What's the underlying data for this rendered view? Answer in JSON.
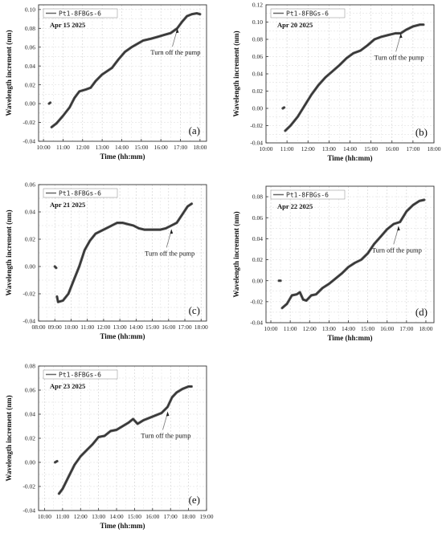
{
  "chart_data": [
    {
      "type": "line",
      "panel_label": "(a)",
      "date_label": "Apr 15 2025",
      "annotation": "Turn off the pump",
      "xlabel": "Time (hh:mm)",
      "ylabel": "Wavelength  increment (nm)",
      "x_ticks": [
        "10:00",
        "11:00",
        "12:00",
        "13:00",
        "14:00",
        "15:00",
        "16:00",
        "17:00",
        "18:00"
      ],
      "xlim": [
        "09:45",
        "18:20"
      ],
      "ylim": [
        -0.04,
        0.105
      ],
      "y_ticks": [
        -0.04,
        -0.02,
        0.0,
        0.02,
        0.04,
        0.06,
        0.08,
        0.1
      ],
      "grid": true,
      "legend": "top-left",
      "arrow_to": [
        "16:50",
        0.081
      ],
      "series": [
        {
          "name": "Pt1-8FBGs-6",
          "segments": [
            [
              [
                "10:17",
                0.0
              ],
              [
                "10:21",
                0.001
              ]
            ],
            [
              [
                "10:25",
                -0.025
              ],
              [
                "10:40",
                -0.021
              ],
              [
                "11:00",
                -0.013
              ],
              [
                "11:20",
                -0.004
              ],
              [
                "11:35",
                0.006
              ],
              [
                "11:50",
                0.013
              ],
              [
                "12:10",
                0.015
              ],
              [
                "12:25",
                0.017
              ],
              [
                "12:40",
                0.024
              ],
              [
                "13:00",
                0.031
              ],
              [
                "13:30",
                0.038
              ],
              [
                "13:50",
                0.047
              ],
              [
                "14:10",
                0.055
              ],
              [
                "14:30",
                0.06
              ],
              [
                "14:50",
                0.064
              ],
              [
                "15:05",
                0.067
              ],
              [
                "15:30",
                0.069
              ],
              [
                "15:50",
                0.071
              ],
              [
                "16:10",
                0.073
              ],
              [
                "16:30",
                0.075
              ],
              [
                "16:50",
                0.08
              ],
              [
                "17:05",
                0.087
              ],
              [
                "17:20",
                0.093
              ],
              [
                "17:35",
                0.095
              ],
              [
                "17:50",
                0.096
              ],
              [
                "18:00",
                0.095
              ]
            ]
          ]
        }
      ]
    },
    {
      "type": "line",
      "panel_label": "(b)",
      "date_label": "Apr 20 2025",
      "annotation": "Turn off the pump",
      "xlabel": "Time (hh:mm)",
      "ylabel": "Wavelength  increment (nm)",
      "x_ticks": [
        "10:00",
        "11:00",
        "12:00",
        "13:00",
        "14:00",
        "15:00",
        "16:00",
        "17:00",
        "18:00"
      ],
      "xlim": [
        "10:00",
        "18:00"
      ],
      "ylim": [
        -0.04,
        0.12
      ],
      "y_ticks": [
        -0.04,
        -0.02,
        0.0,
        0.02,
        0.04,
        0.06,
        0.08,
        0.1,
        0.12
      ],
      "grid": true,
      "legend": "top-left",
      "arrow_to": [
        "16:25",
        0.088
      ],
      "series": [
        {
          "name": "Pt1-8FBGs-6",
          "segments": [
            [
              [
                "10:48",
                0.0
              ],
              [
                "10:52",
                0.001
              ]
            ],
            [
              [
                "10:55",
                -0.026
              ],
              [
                "11:10",
                -0.02
              ],
              [
                "11:30",
                -0.01
              ],
              [
                "11:50",
                0.003
              ],
              [
                "12:10",
                0.016
              ],
              [
                "12:30",
                0.027
              ],
              [
                "12:50",
                0.036
              ],
              [
                "13:10",
                0.043
              ],
              [
                "13:30",
                0.05
              ],
              [
                "13:50",
                0.058
              ],
              [
                "14:10",
                0.064
              ],
              [
                "14:30",
                0.067
              ],
              [
                "14:50",
                0.073
              ],
              [
                "15:10",
                0.08
              ],
              [
                "15:30",
                0.083
              ],
              [
                "15:50",
                0.085
              ],
              [
                "16:10",
                0.087
              ],
              [
                "16:25",
                0.087
              ],
              [
                "16:40",
                0.091
              ],
              [
                "17:00",
                0.095
              ],
              [
                "17:20",
                0.097
              ],
              [
                "17:30",
                0.097
              ]
            ]
          ]
        }
      ]
    },
    {
      "type": "line",
      "panel_label": "(c)",
      "date_label": "Apr 21 2025",
      "annotation": "Turn off the pump",
      "xlabel": "Time (hh:mm)",
      "ylabel": "Wavelength  increment (nm)",
      "x_ticks": [
        "08:00",
        "09:00",
        "10:00",
        "11:00",
        "12:00",
        "13:00",
        "14:00",
        "15:00",
        "16:00",
        "17:00",
        "18:00"
      ],
      "xlim": [
        "08:00",
        "18:20"
      ],
      "ylim": [
        -0.04,
        0.06
      ],
      "y_ticks": [
        -0.04,
        -0.02,
        0.0,
        0.02,
        0.04,
        0.06
      ],
      "grid": true,
      "legend": "top-left",
      "arrow_to": [
        "16:10",
        0.028
      ],
      "series": [
        {
          "name": "Pt1-8FBGs-6",
          "segments": [
            [
              [
                "09:00",
                0.0
              ],
              [
                "09:05",
                -0.001
              ]
            ],
            [
              [
                "09:08",
                -0.022
              ],
              [
                "09:12",
                -0.026
              ],
              [
                "09:30",
                -0.025
              ],
              [
                "09:50",
                -0.02
              ],
              [
                "10:10",
                -0.01
              ],
              [
                "10:30",
                0.0
              ],
              [
                "10:50",
                0.012
              ],
              [
                "11:10",
                0.019
              ],
              [
                "11:30",
                0.024
              ],
              [
                "11:50",
                0.026
              ],
              [
                "12:10",
                0.028
              ],
              [
                "12:30",
                0.03
              ],
              [
                "12:50",
                0.032
              ],
              [
                "13:10",
                0.032
              ],
              [
                "13:30",
                0.031
              ],
              [
                "13:50",
                0.03
              ],
              [
                "14:10",
                0.028
              ],
              [
                "14:30",
                0.027
              ],
              [
                "15:00",
                0.027
              ],
              [
                "15:30",
                0.027
              ],
              [
                "15:50",
                0.028
              ],
              [
                "16:10",
                0.03
              ],
              [
                "16:30",
                0.032
              ],
              [
                "16:50",
                0.038
              ],
              [
                "17:10",
                0.044
              ],
              [
                "17:25",
                0.046
              ]
            ]
          ]
        }
      ]
    },
    {
      "type": "line",
      "panel_label": "(d)",
      "date_label": "Apr 22 2025",
      "annotation": "Turn off the pump",
      "xlabel": "Time (hh:mm)",
      "ylabel": "Wavelength  increment (nm)",
      "x_ticks": [
        "10:00",
        "11:00",
        "12:00",
        "13:00",
        "14:00",
        "15:00",
        "16:00",
        "17:00",
        "18:00"
      ],
      "xlim": [
        "09:45",
        "18:25"
      ],
      "ylim": [
        -0.04,
        0.09
      ],
      "y_ticks": [
        -0.04,
        -0.02,
        0.0,
        0.02,
        0.04,
        0.06,
        0.08
      ],
      "grid": true,
      "legend": "top-left",
      "arrow_to": [
        "16:35",
        0.053
      ],
      "series": [
        {
          "name": "Pt1-8FBGs-6",
          "segments": [
            [
              [
                "10:25",
                0.0
              ],
              [
                "10:30",
                0.0
              ]
            ],
            [
              [
                "10:35",
                -0.026
              ],
              [
                "10:50",
                -0.022
              ],
              [
                "11:05",
                -0.014
              ],
              [
                "11:20",
                -0.013
              ],
              [
                "11:30",
                -0.011
              ],
              [
                "11:40",
                -0.018
              ],
              [
                "11:50",
                -0.019
              ],
              [
                "12:05",
                -0.014
              ],
              [
                "12:20",
                -0.013
              ],
              [
                "12:40",
                -0.007
              ],
              [
                "13:00",
                -0.003
              ],
              [
                "13:20",
                0.002
              ],
              [
                "13:40",
                0.007
              ],
              [
                "14:00",
                0.013
              ],
              [
                "14:20",
                0.017
              ],
              [
                "14:40",
                0.02
              ],
              [
                "15:00",
                0.026
              ],
              [
                "15:20",
                0.035
              ],
              [
                "15:40",
                0.042
              ],
              [
                "16:00",
                0.049
              ],
              [
                "16:20",
                0.054
              ],
              [
                "16:40",
                0.056
              ],
              [
                "17:00",
                0.066
              ],
              [
                "17:20",
                0.072
              ],
              [
                "17:40",
                0.076
              ],
              [
                "17:55",
                0.077
              ]
            ]
          ]
        }
      ]
    },
    {
      "type": "line",
      "panel_label": "(e)",
      "date_label": "Apr 23 2025",
      "annotation": "Turn off the pump",
      "xlabel": "Time (hh:mm)",
      "ylabel": "Wavelength  increment (nm)",
      "x_ticks": [
        "10:00",
        "11:00",
        "12:00",
        "13:00",
        "14:00",
        "15:00",
        "16:00",
        "17:00",
        "18:00",
        "19:00"
      ],
      "xlim": [
        "09:40",
        "19:00"
      ],
      "ylim": [
        -0.04,
        0.08
      ],
      "y_ticks": [
        -0.04,
        -0.02,
        0.0,
        0.02,
        0.04,
        0.06,
        0.08
      ],
      "grid": true,
      "legend": "top-left",
      "arrow_to": [
        "16:50",
        0.043
      ],
      "series": [
        {
          "name": "Pt1-8FBGs-6",
          "segments": [
            [
              [
                "10:35",
                0.0
              ],
              [
                "10:42",
                0.001
              ]
            ],
            [
              [
                "10:48",
                -0.026
              ],
              [
                "11:00",
                -0.022
              ],
              [
                "11:20",
                -0.012
              ],
              [
                "11:40",
                -0.002
              ],
              [
                "12:00",
                0.005
              ],
              [
                "12:20",
                0.01
              ],
              [
                "12:40",
                0.015
              ],
              [
                "13:00",
                0.021
              ],
              [
                "13:20",
                0.022
              ],
              [
                "13:40",
                0.026
              ],
              [
                "14:00",
                0.027
              ],
              [
                "14:20",
                0.03
              ],
              [
                "14:40",
                0.033
              ],
              [
                "14:55",
                0.036
              ],
              [
                "15:10",
                0.032
              ],
              [
                "15:30",
                0.035
              ],
              [
                "15:50",
                0.037
              ],
              [
                "16:10",
                0.039
              ],
              [
                "16:30",
                0.041
              ],
              [
                "16:50",
                0.046
              ],
              [
                "17:05",
                0.054
              ],
              [
                "17:20",
                0.058
              ],
              [
                "17:40",
                0.061
              ],
              [
                "18:00",
                0.063
              ],
              [
                "18:10",
                0.063
              ]
            ]
          ]
        }
      ]
    }
  ]
}
